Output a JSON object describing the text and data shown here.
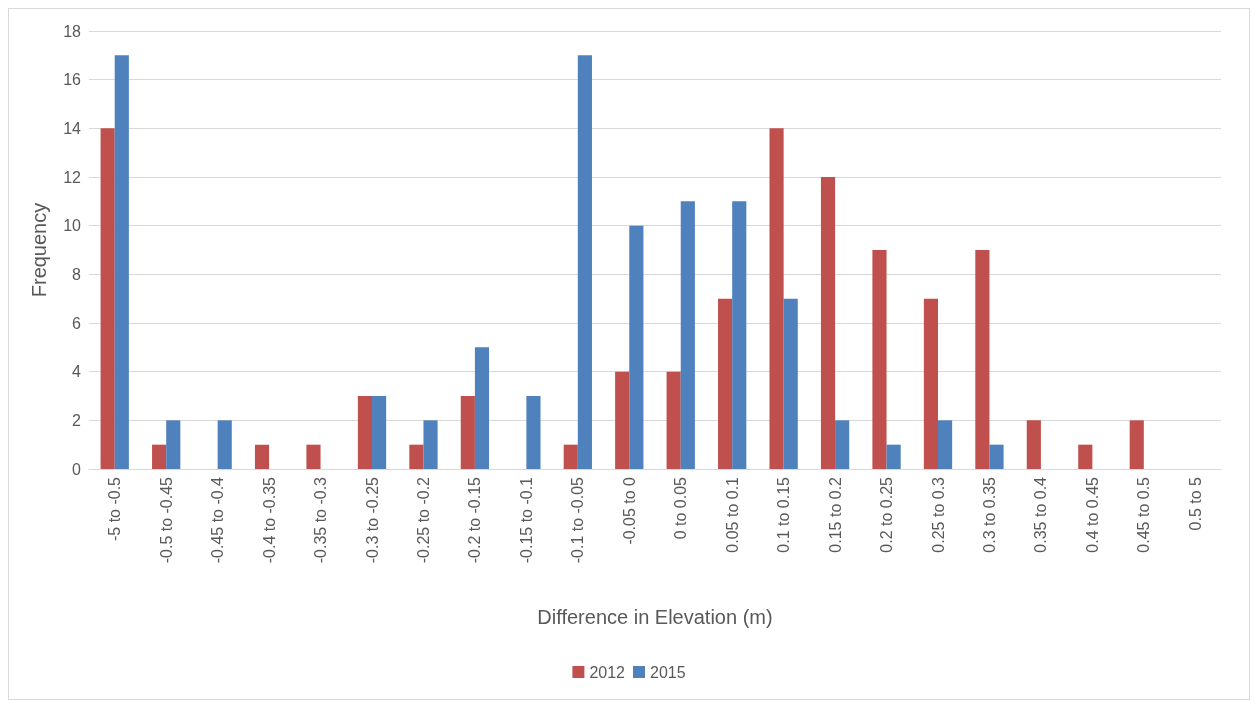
{
  "chart_data": {
    "type": "bar",
    "xlabel": "Difference in Elevation (m)",
    "ylabel": "Frequency",
    "categories": [
      "-5 to -0.5",
      "-0.5 to -0.45",
      "-0.45 to -0.4",
      "-0.4 to -0.35",
      "-0.35 to -0.3",
      "-0.3 to -0.25",
      "-0.25 to -0.2",
      "-0.2 to -0.15",
      "-0.15 to -0.1",
      "-0.1 to -0.05",
      "-0.05 to 0",
      "0 to 0.05",
      "0.05 to 0.1",
      "0.1 to 0.15",
      "0.15 to 0.2",
      "0.2 to 0.25",
      "0.25 to 0.3",
      "0.3 to 0.35",
      "0.35 to 0.4",
      "0.4 to 0.45",
      "0.45 to 0.5",
      "0.5 to 5"
    ],
    "series": [
      {
        "name": "2012",
        "color": "#c0504d",
        "values": [
          14,
          1,
          null,
          1,
          1,
          3,
          1,
          3,
          null,
          1,
          4,
          4,
          7,
          14,
          12,
          9,
          7,
          9,
          2,
          1,
          2,
          null
        ]
      },
      {
        "name": "2015",
        "color": "#4f81bd",
        "values": [
          17,
          2,
          2,
          null,
          null,
          3,
          2,
          5,
          3,
          17,
          10,
          11,
          11,
          7,
          2,
          1,
          2,
          1,
          null,
          null,
          null,
          null
        ]
      }
    ],
    "ylim": [
      0,
      18
    ],
    "yticks": [
      0,
      2,
      4,
      6,
      8,
      10,
      12,
      14,
      16,
      18
    ],
    "grid": "y",
    "legend": "bottom"
  }
}
